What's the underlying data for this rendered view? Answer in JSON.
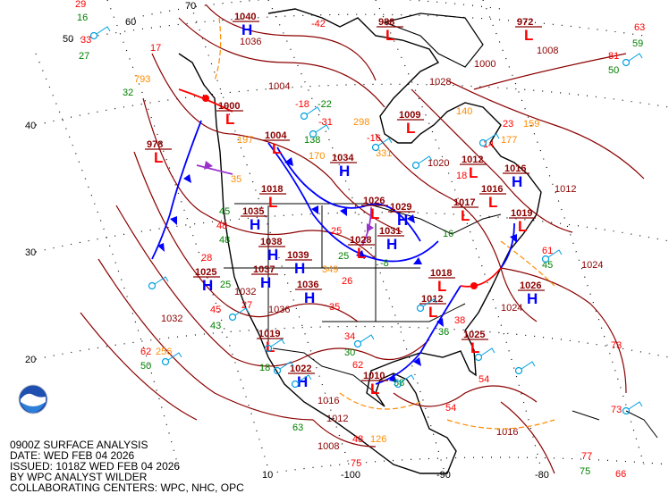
{
  "caption": {
    "line1": "0900Z SURFACE ANALYSIS",
    "line2": "DATE: WED FEB 04 2026",
    "line3": "ISSUED: 1018Z WED FEB 04 2026",
    "line4": "BY WPC ANALYST WILDER",
    "line5": "COLLABORATING CENTERS: WPC, NHC, OPC"
  },
  "logo": {
    "name": "noaa-logo",
    "text": "NOAA"
  },
  "grid_labels": {
    "lat": [
      "60",
      "50",
      "40",
      "30",
      "20",
      "10"
    ],
    "lon": [
      "70",
      "-100",
      "-90",
      "-80"
    ]
  },
  "colors": {
    "isobar": "#8b0000",
    "high": "#0000ff",
    "low": "#ff0000",
    "cold_front": "#0000ff",
    "warm_front": "#ff0000",
    "occluded_front": "#9932cc",
    "trough": "#ff8c00",
    "temperature": "#ff0000",
    "dewpoint": "#008000",
    "pressure_code": "#ff8c00",
    "wind_barb": "#00a0e0"
  },
  "pressure_centers": [
    {
      "type": "H",
      "value": "1040"
    },
    {
      "type": "L",
      "value": "1000"
    },
    {
      "type": "L",
      "value": "978"
    },
    {
      "type": "L",
      "value": "1004"
    },
    {
      "type": "H",
      "value": "1034"
    },
    {
      "type": "L",
      "value": "1009"
    },
    {
      "type": "L",
      "value": "1018"
    },
    {
      "type": "H",
      "value": "1035"
    },
    {
      "type": "L",
      "value": "1026"
    },
    {
      "type": "H",
      "value": "1029"
    },
    {
      "type": "L",
      "value": "1028"
    },
    {
      "type": "H",
      "value": "1031"
    },
    {
      "type": "H",
      "value": "1038"
    },
    {
      "type": "H",
      "value": "1039"
    },
    {
      "type": "H",
      "value": "1037"
    },
    {
      "type": "H",
      "value": "1036"
    },
    {
      "type": "H",
      "value": "1025"
    },
    {
      "type": "L",
      "value": "1012"
    },
    {
      "type": "H",
      "value": "1016"
    },
    {
      "type": "L",
      "value": "1016"
    },
    {
      "type": "L",
      "value": "1017"
    },
    {
      "type": "L",
      "value": "1019"
    },
    {
      "type": "L",
      "value": "1018"
    },
    {
      "type": "L",
      "value": "1012"
    },
    {
      "type": "H",
      "value": "1026"
    },
    {
      "type": "L",
      "value": "1025"
    },
    {
      "type": "L",
      "value": "1019"
    },
    {
      "type": "H",
      "value": "1022"
    },
    {
      "type": "L",
      "value": "1010"
    },
    {
      "type": "L",
      "value": "988"
    },
    {
      "type": "L",
      "value": "972"
    }
  ],
  "isobar_labels": [
    "1036",
    "1032",
    "1028",
    "1024",
    "1020",
    "1016",
    "1012",
    "1008",
    "1004",
    "1000",
    "1036",
    "1032",
    "1016",
    "1012",
    "1008",
    "1024"
  ],
  "station_values": [
    {
      "kind": "temperature",
      "value": "29"
    },
    {
      "kind": "dewpoint",
      "value": "16"
    },
    {
      "kind": "temperature",
      "value": "33"
    },
    {
      "kind": "dewpoint",
      "value": "27"
    },
    {
      "kind": "temperature",
      "value": "17"
    },
    {
      "kind": "pressure_code",
      "value": "793"
    },
    {
      "kind": "dewpoint",
      "value": "32"
    },
    {
      "kind": "temperature",
      "value": "-42"
    },
    {
      "kind": "temperature",
      "value": "-31"
    },
    {
      "kind": "pressure_code",
      "value": "298"
    },
    {
      "kind": "dewpoint",
      "value": "138"
    },
    {
      "kind": "temperature",
      "value": "-16"
    },
    {
      "kind": "pressure_code",
      "value": "331"
    },
    {
      "kind": "pressure_code",
      "value": "170"
    },
    {
      "kind": "temperature",
      "value": "-18"
    },
    {
      "kind": "dewpoint",
      "value": "-22"
    },
    {
      "kind": "pressure_code",
      "value": "197"
    },
    {
      "kind": "pressure_code",
      "value": "35"
    },
    {
      "kind": "dewpoint",
      "value": "45"
    },
    {
      "kind": "temperature",
      "value": "48"
    },
    {
      "kind": "dewpoint",
      "value": "48"
    },
    {
      "kind": "temperature",
      "value": "28"
    },
    {
      "kind": "dewpoint",
      "value": "25"
    },
    {
      "kind": "temperature",
      "value": "45"
    },
    {
      "kind": "dewpoint",
      "value": "43"
    },
    {
      "kind": "temperature",
      "value": "27"
    },
    {
      "kind": "dewpoint",
      "value": "18"
    },
    {
      "kind": "temperature",
      "value": "25"
    },
    {
      "kind": "dewpoint",
      "value": "25"
    },
    {
      "kind": "pressure_code",
      "value": "349"
    },
    {
      "kind": "temperature",
      "value": "26"
    },
    {
      "kind": "temperature",
      "value": "35"
    },
    {
      "kind": "dewpoint",
      "value": "-8"
    },
    {
      "kind": "temperature",
      "value": "18"
    },
    {
      "kind": "dewpoint",
      "value": "16"
    },
    {
      "kind": "temperature",
      "value": "14"
    },
    {
      "kind": "pressure_code",
      "value": "177"
    },
    {
      "kind": "temperature",
      "value": "23"
    },
    {
      "kind": "pressure_code",
      "value": "159"
    },
    {
      "kind": "pressure_code",
      "value": "140"
    },
    {
      "kind": "temperature",
      "value": "61"
    },
    {
      "kind": "dewpoint",
      "value": "45"
    },
    {
      "kind": "temperature",
      "value": "62"
    },
    {
      "kind": "pressure_code",
      "value": "256"
    },
    {
      "kind": "dewpoint",
      "value": "50"
    },
    {
      "kind": "temperature",
      "value": "54"
    },
    {
      "kind": "temperature",
      "value": "34"
    },
    {
      "kind": "dewpoint",
      "value": "30"
    },
    {
      "kind": "temperature",
      "value": "62"
    },
    {
      "kind": "dewpoint",
      "value": "58"
    },
    {
      "kind": "temperature",
      "value": "54"
    },
    {
      "kind": "temperature",
      "value": "48"
    },
    {
      "kind": "pressure_code",
      "value": "126"
    },
    {
      "kind": "dewpoint",
      "value": "63"
    },
    {
      "kind": "temperature",
      "value": "75"
    },
    {
      "kind": "temperature",
      "value": "73"
    },
    {
      "kind": "temperature",
      "value": "77"
    },
    {
      "kind": "dewpoint",
      "value": "75"
    },
    {
      "kind": "temperature",
      "value": "66"
    },
    {
      "kind": "temperature",
      "value": "63"
    },
    {
      "kind": "dewpoint",
      "value": "59"
    },
    {
      "kind": "temperature",
      "value": "81"
    },
    {
      "kind": "dewpoint",
      "value": "50"
    },
    {
      "kind": "temperature",
      "value": "73"
    },
    {
      "kind": "temperature",
      "value": "38"
    },
    {
      "kind": "dewpoint",
      "value": "36"
    }
  ]
}
